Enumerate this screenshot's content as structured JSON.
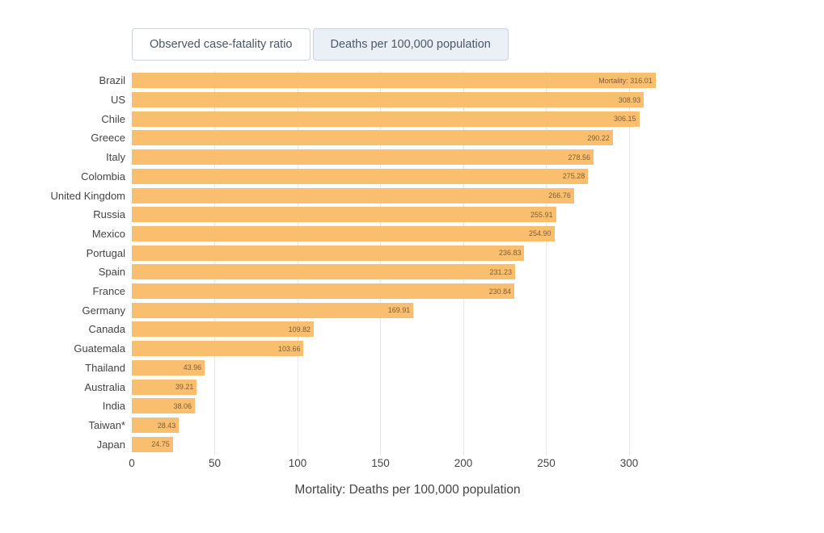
{
  "toolbar": {
    "buttons": [
      {
        "label": "Observed case-fatality ratio",
        "active": false
      },
      {
        "label": "Deaths per 100,000 population",
        "active": true
      }
    ]
  },
  "chart_data": {
    "type": "bar",
    "orientation": "horizontal",
    "title": "",
    "xlabel": "Mortality: Deaths per 100,000 population",
    "ylabel": "",
    "categories": [
      "Brazil",
      "US",
      "Chile",
      "Greece",
      "Italy",
      "Colombia",
      "United Kingdom",
      "Russia",
      "Mexico",
      "Portugal",
      "Spain",
      "France",
      "Germany",
      "Canada",
      "Guatemala",
      "Thailand",
      "Australia",
      "India",
      "Taiwan*",
      "Japan"
    ],
    "values": [
      316.01,
      308.93,
      306.15,
      290.22,
      278.56,
      275.28,
      266.76,
      255.91,
      254.9,
      236.83,
      231.23,
      230.84,
      169.91,
      109.82,
      103.66,
      43.96,
      39.21,
      38.06,
      28.43,
      24.75
    ],
    "bar_labels": [
      "Mortality: 316.01",
      "308.93",
      "306.15",
      "290.22",
      "278.56",
      "275.28",
      "266.76",
      "255.91",
      "254.90",
      "236.83",
      "231.23",
      "230.84",
      "169.91",
      "109.82",
      "103.66",
      "43.96",
      "39.21",
      "38.06",
      "28.43",
      "24.75"
    ],
    "xticks": [
      0,
      50,
      100,
      150,
      200,
      250,
      300
    ],
    "xlim": [
      0,
      332.7
    ],
    "grid": true,
    "legend_position": "none",
    "bar_color": "#f9bf6f",
    "inside_label_color": "#7c5f37",
    "grid_color": "#e9e9e9"
  }
}
